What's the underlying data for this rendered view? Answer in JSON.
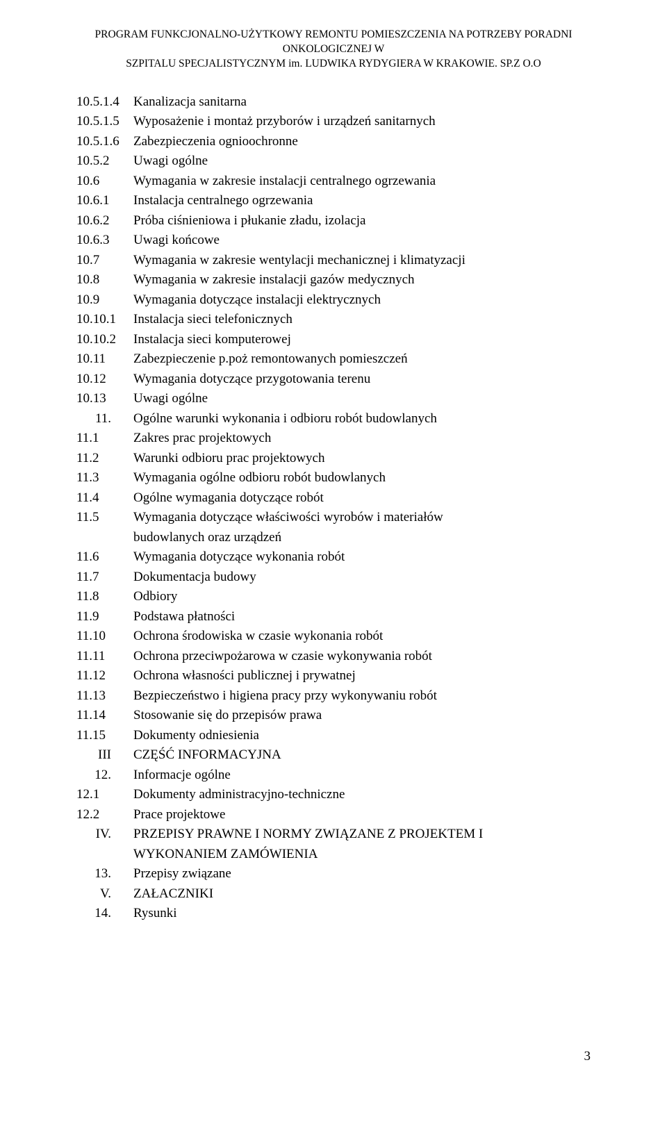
{
  "header": {
    "line1": "PROGRAM FUNKCJONALNO-UŻYTKOWY REMONTU POMIESZCZENIA NA POTRZEBY PORADNI ONKOLOGICZNEJ W",
    "line2": "SZPITALU SPECJALISTYCZNYM im. LUDWIKA RYDYGIERA W KRAKOWIE. SP.Z O.O"
  },
  "toc": [
    {
      "num": "10.5.1.4",
      "text": "Kanalizacja sanitarna"
    },
    {
      "num": "10.5.1.5",
      "text": "Wyposażenie i montaż przyborów i urządzeń sanitarnych"
    },
    {
      "num": "10.5.1.6",
      "text": "Zabezpieczenia ognioochronne"
    },
    {
      "num": "10.5.2",
      "text": "Uwagi ogólne"
    },
    {
      "num": "10.6",
      "text": "Wymagania w zakresie instalacji centralnego ogrzewania"
    },
    {
      "num": "10.6.1",
      "text": "Instalacja centralnego ogrzewania"
    },
    {
      "num": "10.6.2",
      "text": "Próba ciśnieniowa i płukanie zładu, izolacja"
    },
    {
      "num": "10.6.3",
      "text": "Uwagi końcowe"
    },
    {
      "num": "10.7",
      "text": "Wymagania w zakresie wentylacji mechanicznej i klimatyzacji"
    },
    {
      "num": "10.8",
      "text": "Wymagania w zakresie instalacji gazów medycznych"
    },
    {
      "num": "10.9",
      "text": "Wymagania dotyczące instalacji elektrycznych"
    },
    {
      "num": "10.10.1",
      "text": "Instalacja sieci telefonicznych"
    },
    {
      "num": "10.10.2",
      "text": "Instalacja sieci komputerowej"
    },
    {
      "num": "10.11",
      "text": "Zabezpieczenie p.poż remontowanych pomieszczeń"
    },
    {
      "num": "10.12",
      "text": "Wymagania dotyczące przygotowania terenu"
    },
    {
      "num": "10.13",
      "text": "Uwagi ogólne"
    },
    {
      "num": "11.",
      "text": "Ogólne warunki wykonania i odbioru robót budowlanych",
      "align": "right"
    },
    {
      "num": "11.1",
      "text": "Zakres prac projektowych"
    },
    {
      "num": "11.2",
      "text": "Warunki odbioru prac projektowych"
    },
    {
      "num": "11.3",
      "text": "Wymagania ogólne odbioru robót budowlanych"
    },
    {
      "num": "11.4",
      "text": "Ogólne wymagania dotyczące robót"
    },
    {
      "num": "11.5",
      "text": "Wymagania dotyczące właściwości wyrobów i materiałów",
      "cont": "budowlanych oraz urządzeń"
    },
    {
      "num": "11.6",
      "text": "Wymagania dotyczące wykonania robót"
    },
    {
      "num": "11.7",
      "text": "Dokumentacja budowy"
    },
    {
      "num": "11.8",
      "text": "Odbiory"
    },
    {
      "num": "11.9",
      "text": "Podstawa płatności"
    },
    {
      "num": "11.10",
      "text": "Ochrona środowiska w czasie wykonania robót"
    },
    {
      "num": "11.11",
      "text": "Ochrona przeciwpożarowa w czasie wykonywania robót"
    },
    {
      "num": "11.12",
      "text": "Ochrona własności publicznej i prywatnej"
    },
    {
      "num": "11.13",
      "text": "Bezpieczeństwo i higiena pracy przy wykonywaniu robót"
    },
    {
      "num": "11.14",
      "text": "Stosowanie się do przepisów prawa"
    },
    {
      "num": "11.15",
      "text": "Dokumenty odniesienia"
    },
    {
      "num": "III",
      "text": "CZĘŚĆ INFORMACYJNA",
      "align": "right"
    },
    {
      "num": "12.",
      "text": "Informacje ogólne",
      "align": "right"
    },
    {
      "num": "12.1",
      "text": "Dokumenty administracyjno-techniczne"
    },
    {
      "num": "12.2",
      "text": "Prace projektowe"
    },
    {
      "num": "IV.",
      "text": "PRZEPISY PRAWNE I NORMY ZWIĄZANE Z PROJEKTEM I",
      "cont": "WYKONANIEM ZAMÓWIENIA",
      "align": "right"
    },
    {
      "num": "13.",
      "text": "Przepisy związane",
      "align": "right"
    },
    {
      "num": "V.",
      "text": "ZAŁACZNIKI",
      "align": "right"
    },
    {
      "num": "14.",
      "text": "Rysunki",
      "align": "right"
    }
  ],
  "page_number": "3"
}
